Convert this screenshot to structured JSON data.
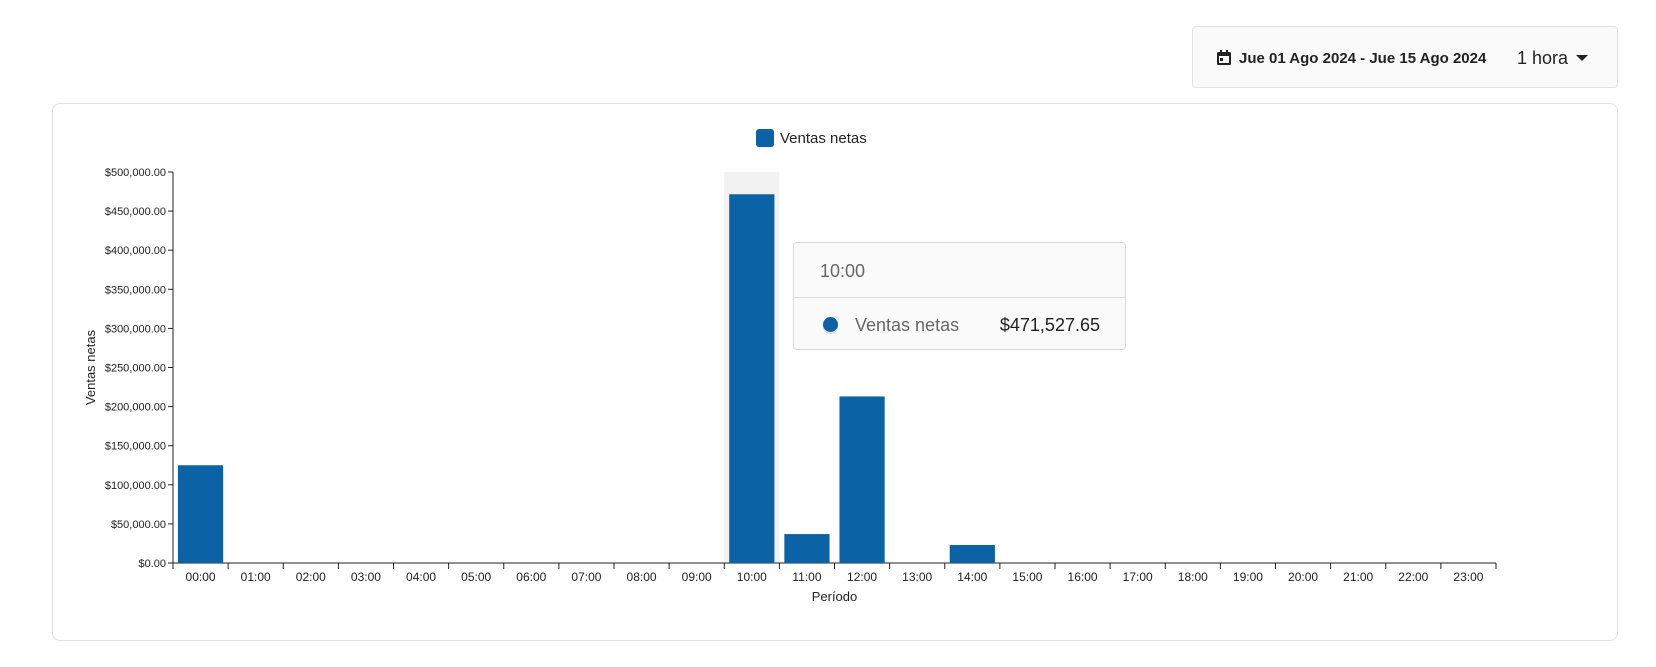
{
  "toolbar": {
    "date_range": "Jue 01 Ago 2024 - Jue 15 Ago 2024",
    "interval": "1 hora",
    "calendar_icon": "calendar-icon",
    "dropdown_icon": "caret-down-icon"
  },
  "tooltip": {
    "title": "10:00",
    "series_name": "Ventas netas",
    "value": "$471,527.65"
  },
  "chart_data": {
    "type": "bar",
    "xlabel": "Período",
    "ylabel": "Ventas netas",
    "ylim": [
      0,
      500000
    ],
    "yticks": [
      "$0.00",
      "$50,000.00",
      "$100,000.00",
      "$150,000.00",
      "$200,000.00",
      "$250,000.00",
      "$300,000.00",
      "$350,000.00",
      "$400,000.00",
      "$450,000.00",
      "$500,000.00"
    ],
    "categories": [
      "00:00",
      "01:00",
      "02:00",
      "03:00",
      "04:00",
      "05:00",
      "06:00",
      "07:00",
      "08:00",
      "09:00",
      "10:00",
      "11:00",
      "12:00",
      "13:00",
      "14:00",
      "15:00",
      "16:00",
      "17:00",
      "18:00",
      "19:00",
      "20:00",
      "21:00",
      "22:00",
      "23:00"
    ],
    "series": [
      {
        "name": "Ventas netas",
        "color": "#0b62a4",
        "values": [
          125000,
          0,
          0,
          0,
          0,
          0,
          0,
          0,
          0,
          0,
          471527.65,
          37000,
          213000,
          0,
          23000,
          0,
          0,
          0,
          0,
          0,
          0,
          0,
          0,
          0
        ]
      }
    ],
    "highlight_category": "10:00",
    "legend": "top-center",
    "grid": false
  }
}
